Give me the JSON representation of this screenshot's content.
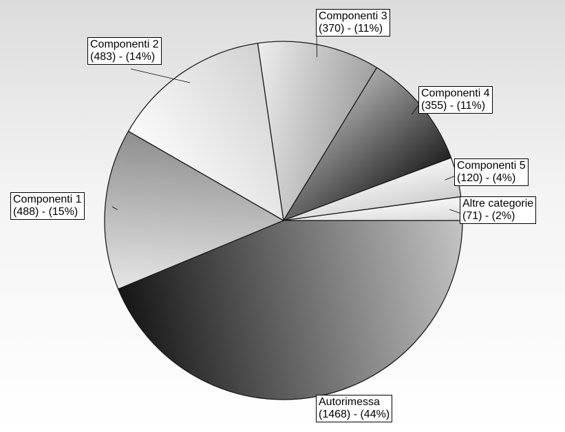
{
  "chart_data": {
    "type": "pie",
    "title": "",
    "legend": "none",
    "slices": [
      {
        "name": "Autorimessa",
        "value": 1468,
        "percent": "44%",
        "value_label": "(1468) - (44%)"
      },
      {
        "name": "Componenti 1",
        "value": 488,
        "percent": "15%",
        "value_label": "(488) - (15%)"
      },
      {
        "name": "Componenti 2",
        "value": 483,
        "percent": "14%",
        "value_label": "(483) - (14%)"
      },
      {
        "name": "Componenti 3",
        "value": 370,
        "percent": "11%",
        "value_label": "(370) - (11%)"
      },
      {
        "name": "Componenti 4",
        "value": 355,
        "percent": "11%",
        "value_label": "(355) - (11%)"
      },
      {
        "name": "Componenti 5",
        "value": 120,
        "percent": "4%",
        "value_label": "(120) - (4%)"
      },
      {
        "name": "Altre categorie",
        "value": 71,
        "percent": "2%",
        "value_label": "(71) - (2%)"
      }
    ]
  }
}
